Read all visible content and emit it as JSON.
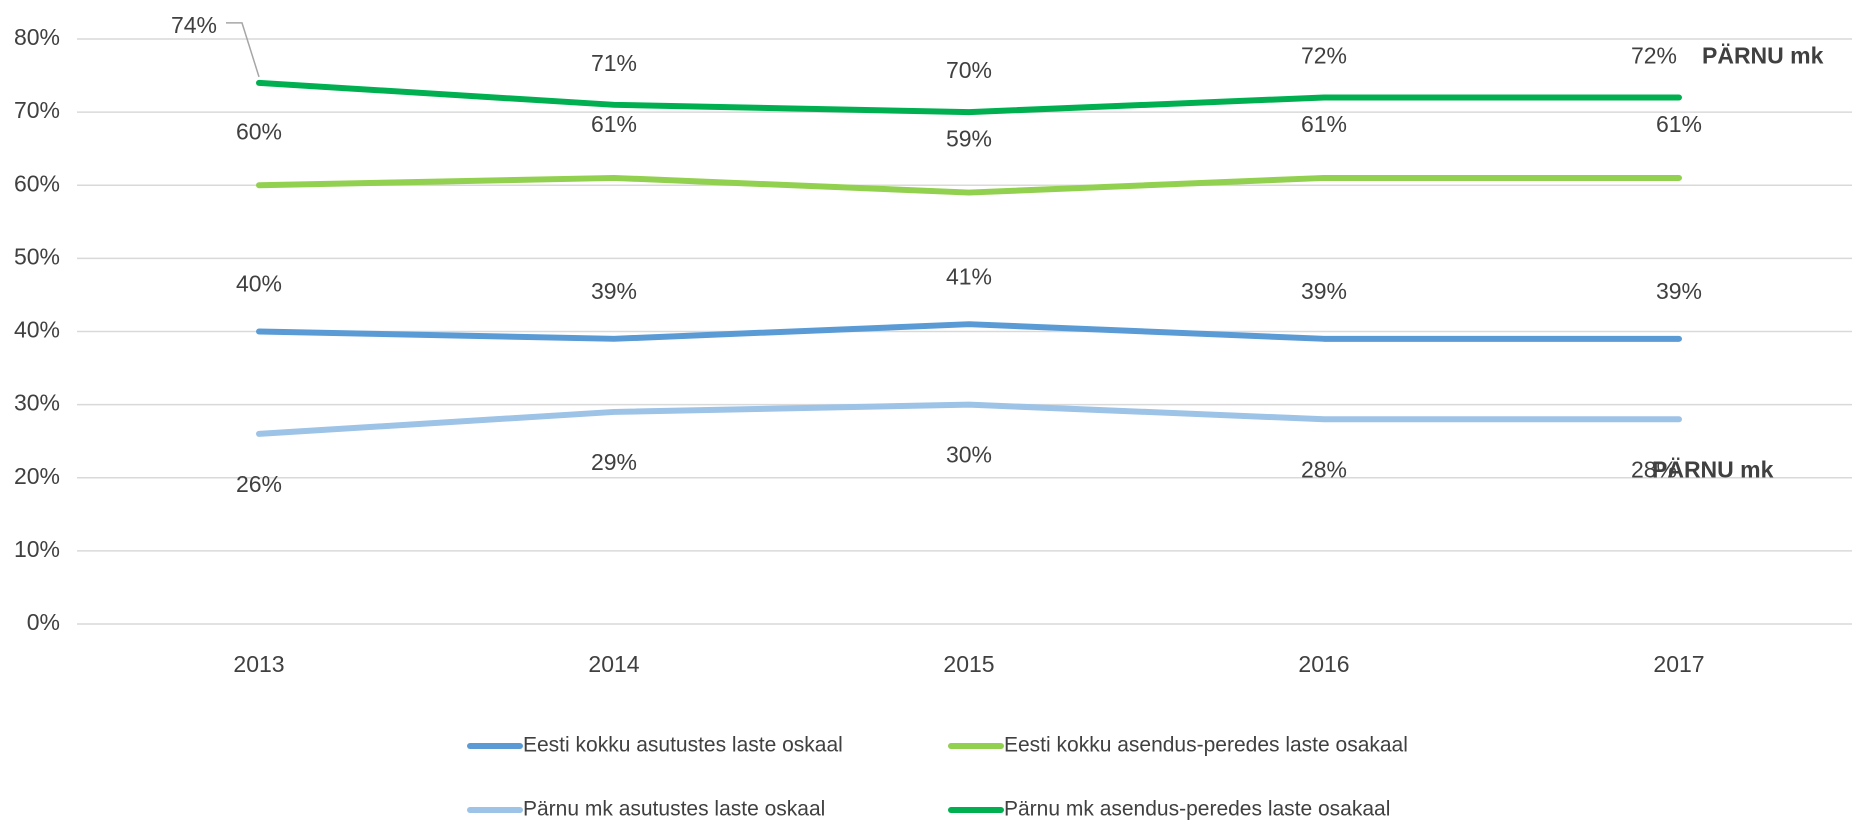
{
  "chart_data": {
    "type": "line",
    "categories": [
      "2013",
      "2014",
      "2015",
      "2016",
      "2017"
    ],
    "series": [
      {
        "name": "Eesti kokku asutustes laste oskaal",
        "color": "#5b9bd5",
        "values": [
          40,
          39,
          41,
          39,
          39
        ],
        "value_labels": [
          "40%",
          "39%",
          "41%",
          "39%",
          "39%"
        ]
      },
      {
        "name": "Eesti kokku asendus-peredes laste osakaal",
        "color": "#92d050",
        "values": [
          60,
          61,
          59,
          61,
          61
        ],
        "value_labels": [
          "60%",
          "61%",
          "59%",
          "61%",
          "61%"
        ]
      },
      {
        "name": "Pärnu mk asutustes laste oskaal",
        "color": "#9dc3e6",
        "values": [
          26,
          29,
          30,
          28,
          28
        ],
        "value_labels": [
          "26%",
          "29%",
          "30%",
          "28%",
          "28%"
        ]
      },
      {
        "name": "Pärnu mk asendus-peredes laste osakaal",
        "color": "#00b050",
        "values": [
          74,
          71,
          70,
          72,
          72
        ],
        "value_labels": [
          "74%",
          "71%",
          "70%",
          "72%",
          "72%"
        ]
      }
    ],
    "ylim": [
      0,
      80
    ],
    "yticks": [
      {
        "value": 0,
        "label": "0%"
      },
      {
        "value": 10,
        "label": "10%"
      },
      {
        "value": 20,
        "label": "20%"
      },
      {
        "value": 30,
        "label": "30%"
      },
      {
        "value": 40,
        "label": "40%"
      },
      {
        "value": 50,
        "label": "50%"
      },
      {
        "value": 60,
        "label": "60%"
      },
      {
        "value": 70,
        "label": "70%"
      },
      {
        "value": 80,
        "label": "80%"
      }
    ],
    "grid": true,
    "legend": "bottom",
    "annotations": [
      "PÄRNU mk",
      "PÄRNU mk"
    ]
  }
}
